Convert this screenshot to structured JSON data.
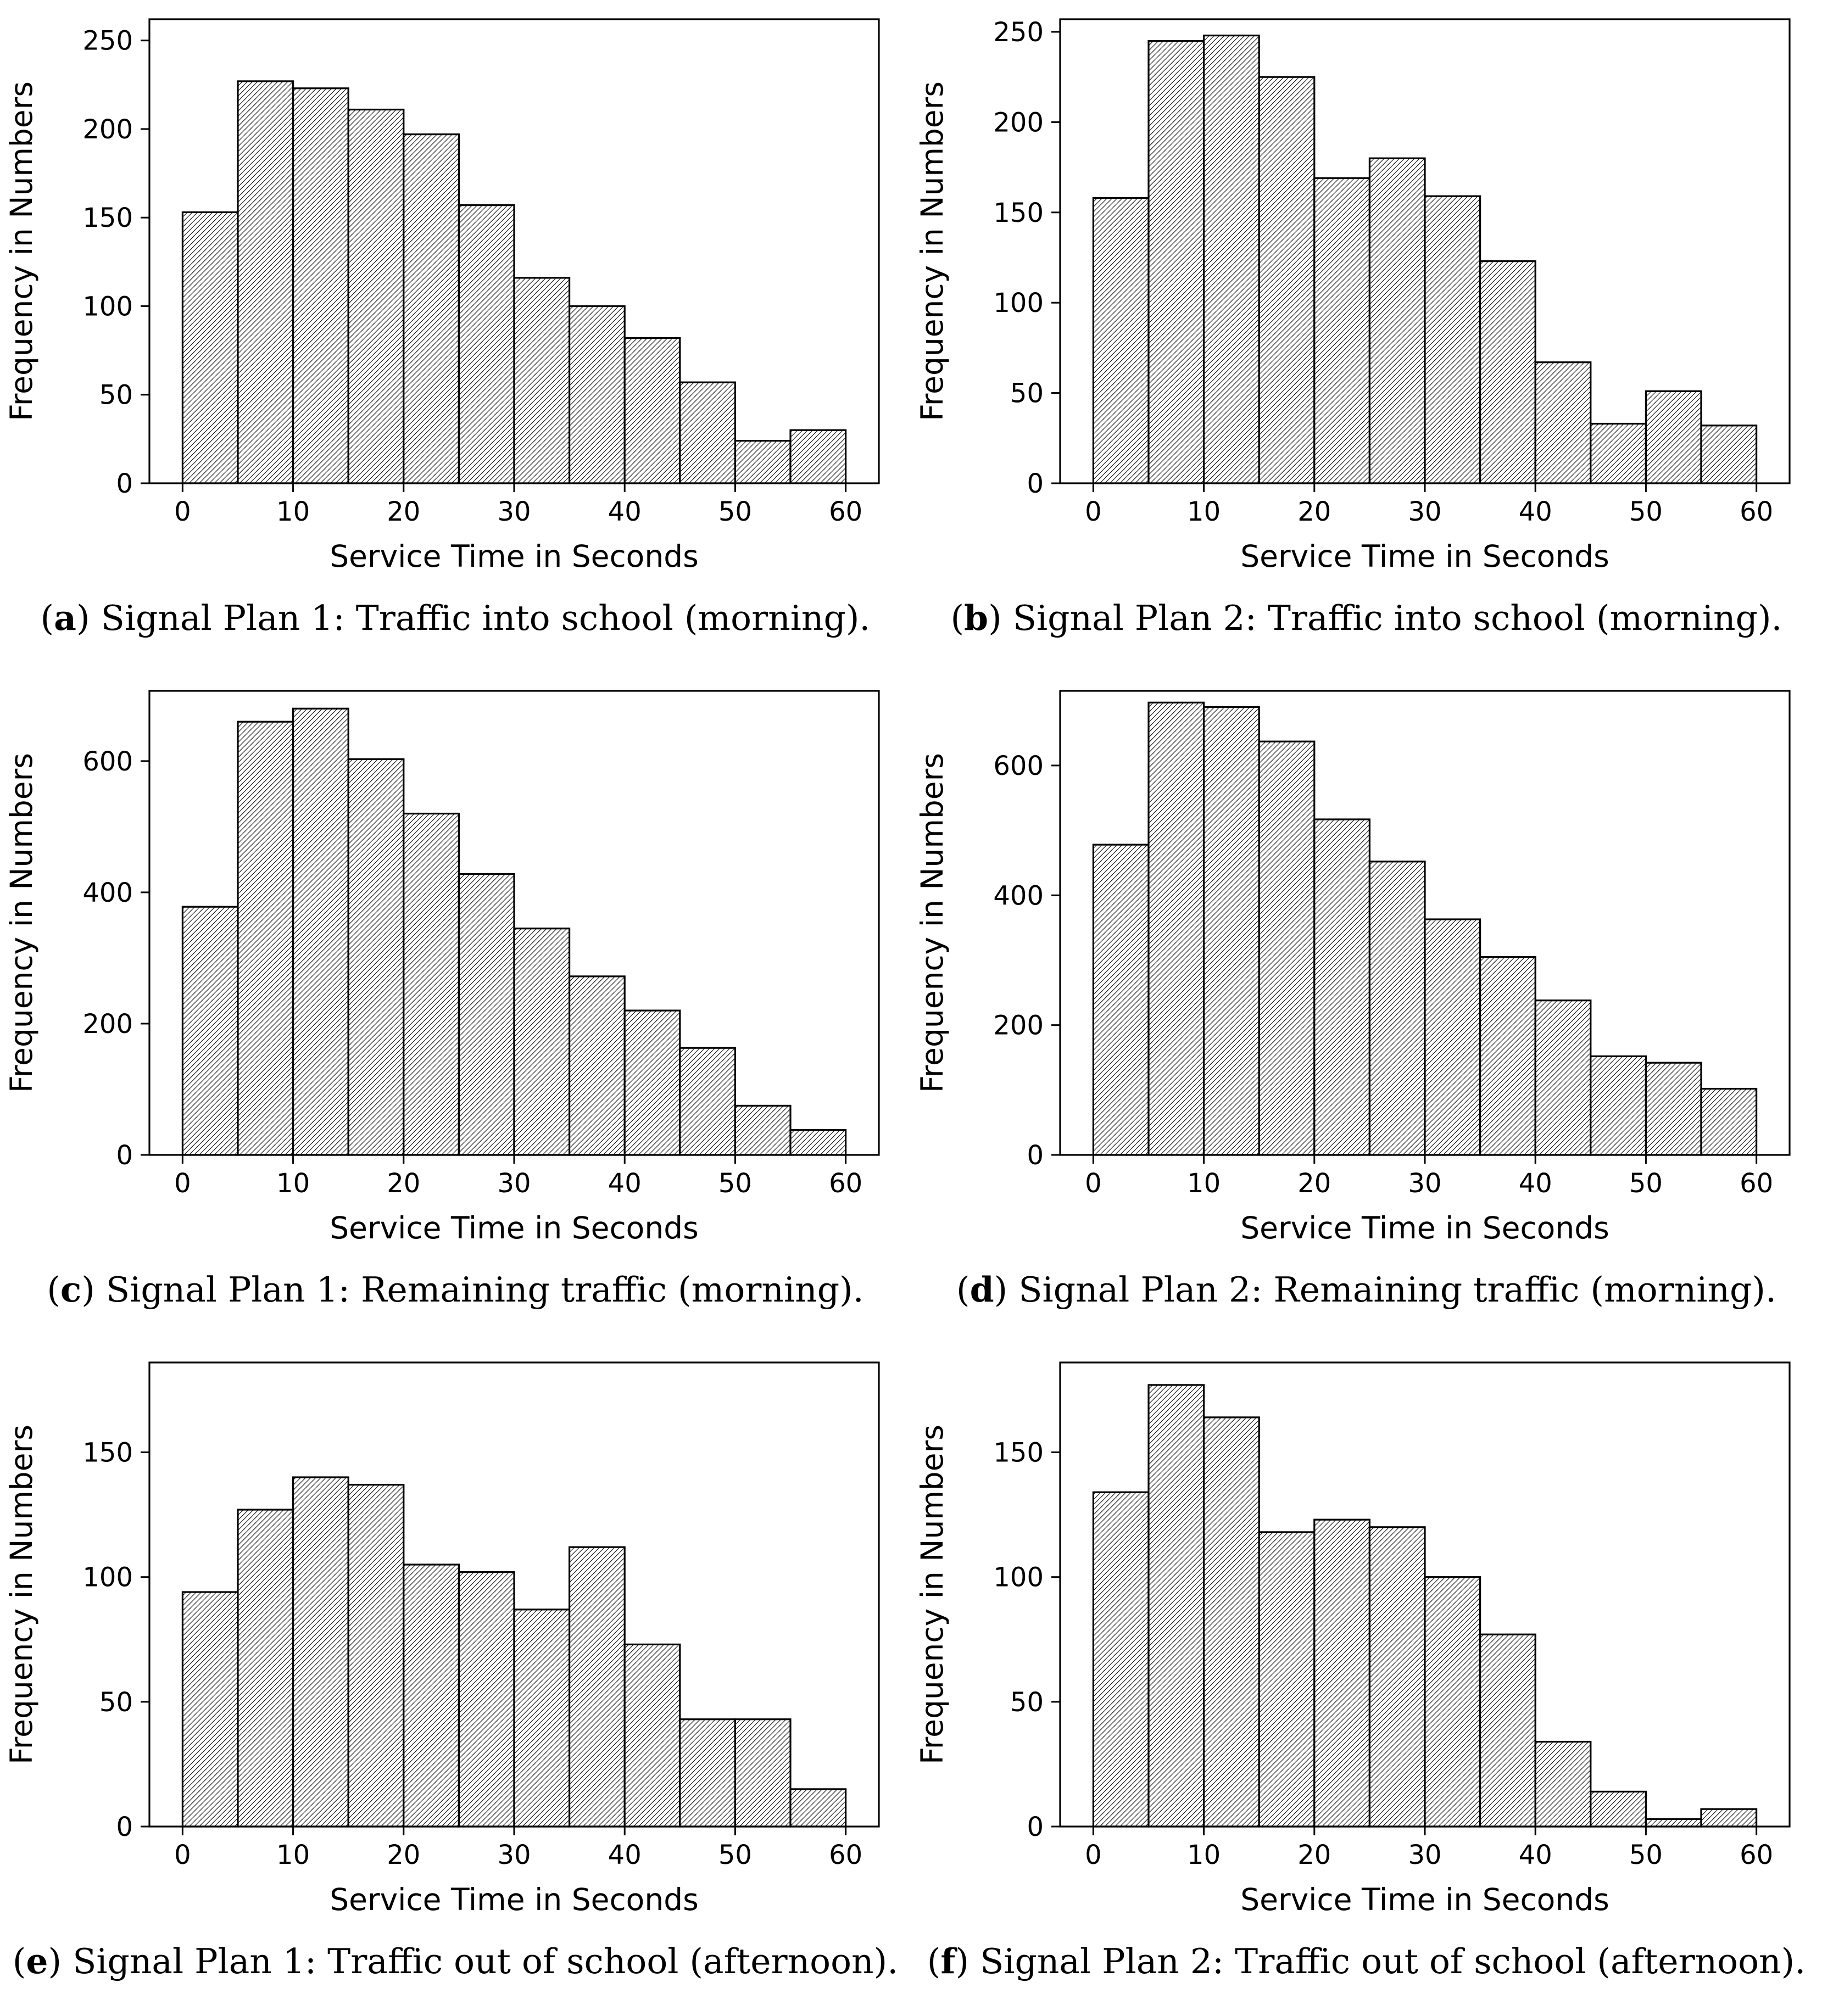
{
  "figure": {
    "caption_open": "(",
    "caption_close": ")",
    "x_axis_label": "Service Time in Seconds",
    "y_axis_label": "Frequency in Numbers",
    "bar_fill": "#ffffff",
    "bar_edge": "#000000",
    "hatch_style": "///"
  },
  "chart_data": [
    {
      "type": "bar",
      "id": "a",
      "caption_letter": "a",
      "caption_text": "Signal Plan 1: Traffic into school (morning).",
      "xlabel": "Service Time in Seconds",
      "ylabel": "Frequency in Numbers",
      "bin_edges": [
        0,
        5,
        10,
        15,
        20,
        25,
        30,
        35,
        40,
        45,
        50,
        55,
        60
      ],
      "values": [
        153,
        227,
        223,
        211,
        197,
        157,
        116,
        100,
        82,
        57,
        24,
        30
      ],
      "xlim": [
        -3,
        63
      ],
      "ylim": [
        0,
        262
      ],
      "xticks": [
        0,
        10,
        20,
        30,
        40,
        50,
        60
      ],
      "yticks": [
        0,
        50,
        100,
        150,
        200,
        250
      ],
      "grid": false,
      "legend": null
    },
    {
      "type": "bar",
      "id": "b",
      "caption_letter": "b",
      "caption_text": "Signal Plan 2: Traffic into school (morning).",
      "xlabel": "Service Time in Seconds",
      "ylabel": "Frequency in Numbers",
      "bin_edges": [
        0,
        5,
        10,
        15,
        20,
        25,
        30,
        35,
        40,
        45,
        50,
        55,
        60
      ],
      "values": [
        158,
        245,
        248,
        225,
        169,
        180,
        159,
        123,
        67,
        33,
        51,
        32
      ],
      "xlim": [
        -3,
        63
      ],
      "ylim": [
        0,
        257
      ],
      "xticks": [
        0,
        10,
        20,
        30,
        40,
        50,
        60
      ],
      "yticks": [
        0,
        50,
        100,
        150,
        200,
        250
      ],
      "grid": false,
      "legend": null
    },
    {
      "type": "bar",
      "id": "c",
      "caption_letter": "c",
      "caption_text": "Signal Plan 1: Remaining traffic (morning).",
      "xlabel": "Service Time in Seconds",
      "ylabel": "Frequency in Numbers",
      "bin_edges": [
        0,
        5,
        10,
        15,
        20,
        25,
        30,
        35,
        40,
        45,
        50,
        55,
        60
      ],
      "values": [
        378,
        660,
        680,
        603,
        520,
        428,
        345,
        272,
        220,
        163,
        75,
        38
      ],
      "xlim": [
        -3,
        63
      ],
      "ylim": [
        0,
        707
      ],
      "xticks": [
        0,
        10,
        20,
        30,
        40,
        50,
        60
      ],
      "yticks": [
        0,
        200,
        400,
        600
      ],
      "grid": false,
      "legend": null
    },
    {
      "type": "bar",
      "id": "d",
      "caption_letter": "d",
      "caption_text": "Signal Plan 2: Remaining traffic (morning).",
      "xlabel": "Service Time in Seconds",
      "ylabel": "Frequency in Numbers",
      "bin_edges": [
        0,
        5,
        10,
        15,
        20,
        25,
        30,
        35,
        40,
        45,
        50,
        55,
        60
      ],
      "values": [
        478,
        697,
        690,
        637,
        517,
        452,
        363,
        305,
        238,
        152,
        142,
        102
      ],
      "xlim": [
        -3,
        63
      ],
      "ylim": [
        0,
        715
      ],
      "xticks": [
        0,
        10,
        20,
        30,
        40,
        50,
        60
      ],
      "yticks": [
        0,
        200,
        400,
        600
      ],
      "grid": false,
      "legend": null
    },
    {
      "type": "bar",
      "id": "e",
      "caption_letter": "e",
      "caption_text": "Signal Plan 1: Traffic out of school (afternoon).",
      "xlabel": "Service Time in Seconds",
      "ylabel": "Frequency in Numbers",
      "bin_edges": [
        0,
        5,
        10,
        15,
        20,
        25,
        30,
        35,
        40,
        45,
        50,
        55,
        60
      ],
      "values": [
        94,
        127,
        140,
        137,
        105,
        102,
        87,
        112,
        73,
        43,
        43,
        15
      ],
      "xlim": [
        -3,
        63
      ],
      "ylim": [
        0,
        186
      ],
      "xticks": [
        0,
        10,
        20,
        30,
        40,
        50,
        60
      ],
      "yticks": [
        0,
        50,
        100,
        150
      ],
      "grid": false,
      "legend": null
    },
    {
      "type": "bar",
      "id": "f",
      "caption_letter": "f",
      "caption_text": "Signal Plan 2: Traffic out of school (afternoon).",
      "xlabel": "Service Time in Seconds",
      "ylabel": "Frequency in Numbers",
      "bin_edges": [
        0,
        5,
        10,
        15,
        20,
        25,
        30,
        35,
        40,
        45,
        50,
        55,
        60
      ],
      "values": [
        134,
        177,
        164,
        118,
        123,
        120,
        100,
        77,
        34,
        14,
        3,
        7
      ],
      "xlim": [
        -3,
        63
      ],
      "ylim": [
        0,
        186
      ],
      "xticks": [
        0,
        10,
        20,
        30,
        40,
        50,
        60
      ],
      "yticks": [
        0,
        50,
        100,
        150
      ],
      "grid": false,
      "legend": null
    }
  ]
}
